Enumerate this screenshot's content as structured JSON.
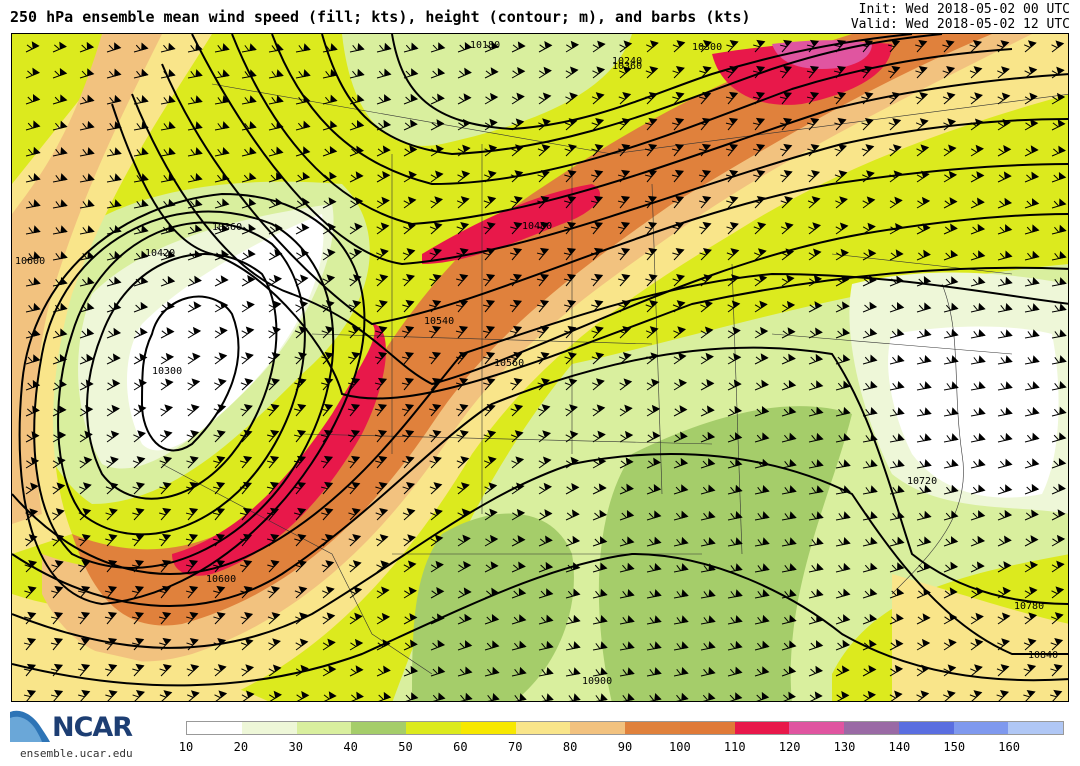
{
  "title": "250 hPa ensemble mean wind speed (fill; kts), height (contour; m), and barbs (kts)",
  "init": "Init: Wed 2018-05-02 00 UTC",
  "valid": "Valid: Wed 2018-05-02 12 UTC",
  "logo": {
    "brand": "NCAR",
    "url": "ensemble.ucar.edu"
  },
  "colorbar": {
    "colors": [
      "#ffffff",
      "#eef7d8",
      "#d9ef9e",
      "#a5cd6a",
      "#dcea1e",
      "#f7e800",
      "#f9e58a",
      "#f2c27f",
      "#e0813c",
      "#e07a38",
      "#e8184a",
      "#e055a0",
      "#9a6aa5",
      "#5a6ee0",
      "#7f99ee",
      "#b0c7f5"
    ],
    "ticks": [
      "10",
      "20",
      "30",
      "40",
      "50",
      "60",
      "70",
      "80",
      "90",
      "100",
      "110",
      "120",
      "130",
      "140",
      "150",
      "160"
    ]
  },
  "contour_labels": [
    {
      "text": "10180",
      "id": "c1"
    },
    {
      "text": "10240",
      "id": "c2"
    },
    {
      "text": "10300",
      "id": "c3"
    },
    {
      "text": "10600",
      "id": "c4"
    },
    {
      "text": "10420",
      "id": "c5"
    },
    {
      "text": "10360",
      "id": "c6"
    },
    {
      "text": "10300",
      "id": "c7"
    },
    {
      "text": "10480",
      "id": "c8"
    },
    {
      "text": "10540",
      "id": "c9"
    },
    {
      "text": "10560",
      "id": "c10"
    },
    {
      "text": "10600",
      "id": "c11"
    },
    {
      "text": "10720",
      "id": "c12"
    },
    {
      "text": "10780",
      "id": "c13"
    },
    {
      "text": "10840",
      "id": "c14"
    },
    {
      "text": "10900",
      "id": "c15"
    },
    {
      "text": "10360",
      "id": "c16"
    }
  ]
}
